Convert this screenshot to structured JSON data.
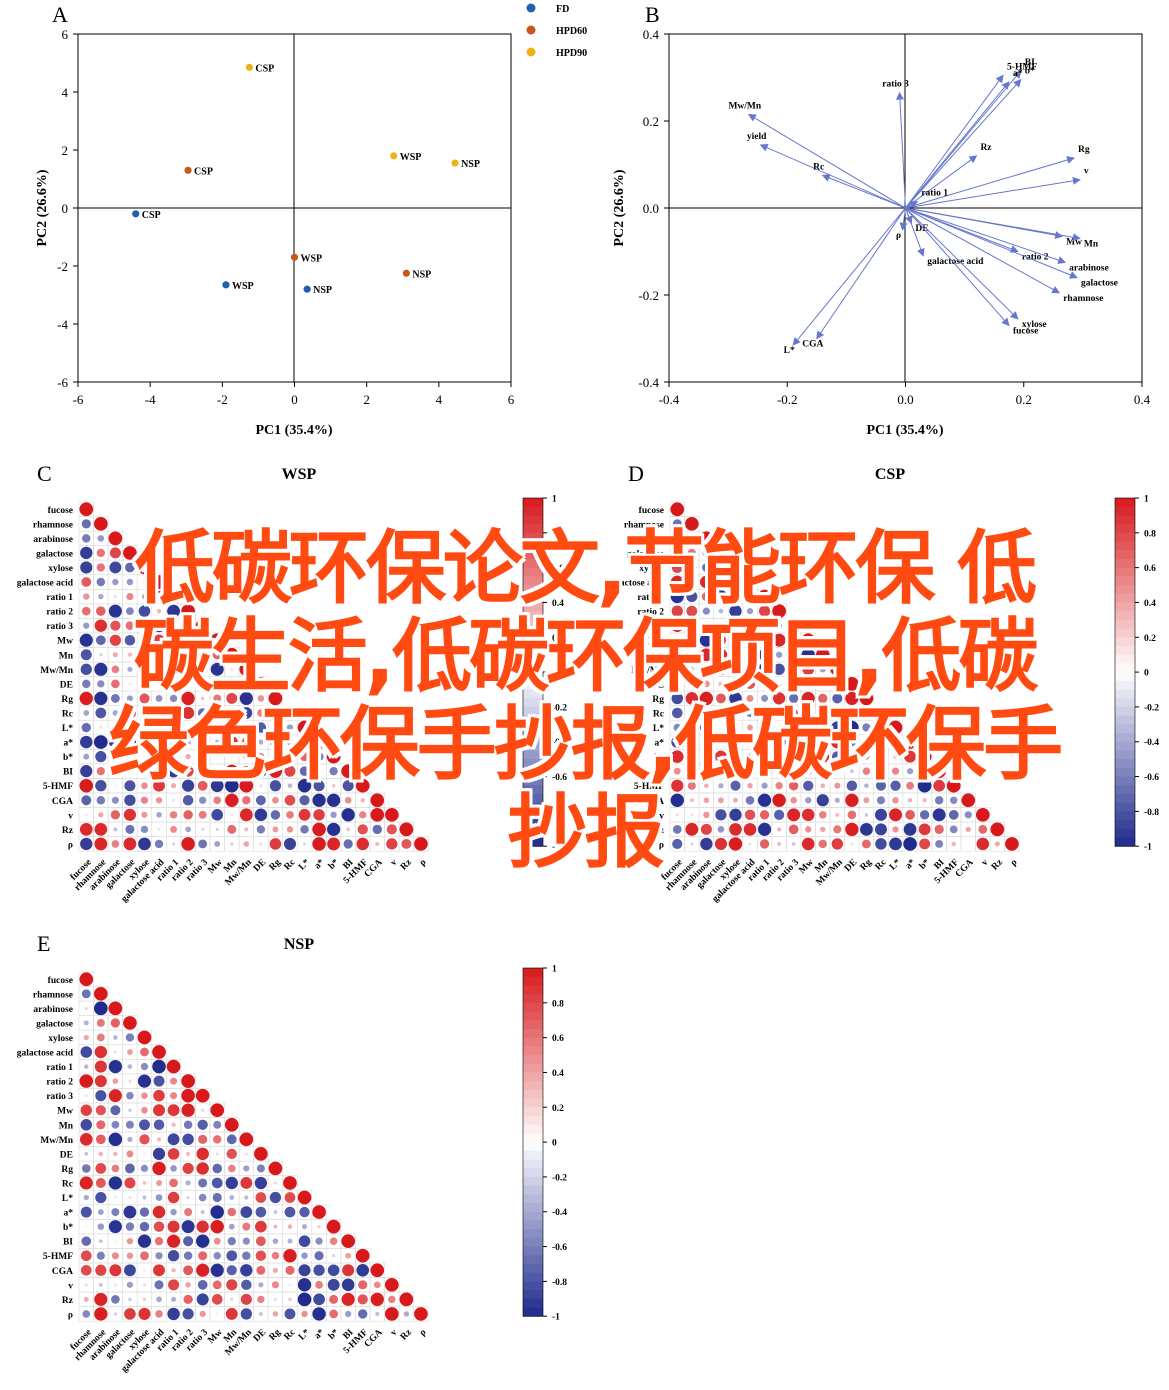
{
  "panelA": {
    "letter": "A",
    "xlabel": "PC1 (35.4%)",
    "ylabel": "PC2 (26.6%)",
    "xlim": [
      -6,
      6
    ],
    "ylim": [
      -6,
      6
    ],
    "xticks": [
      "-6",
      "-4",
      "-2",
      "0",
      "2",
      "4",
      "6"
    ],
    "yticks": [
      "6",
      "4",
      "2",
      "0",
      "-2",
      "-4",
      "-6"
    ],
    "legend": [
      {
        "name": "FD",
        "color": "#1f5fae"
      },
      {
        "name": "HPD60",
        "color": "#c8561e"
      },
      {
        "name": "HPD90",
        "color": "#f0b21c"
      }
    ]
  },
  "panelB": {
    "letter": "B",
    "xlabel": "PC1 (35.4%)",
    "ylabel": "PC2 (26.6%)",
    "xlim": [
      -0.4,
      0.4
    ],
    "ylim": [
      -0.4,
      0.4
    ],
    "xticks": [
      "-0.4",
      "-0.2",
      "0.0",
      "0.2",
      "0.4"
    ],
    "yticks": [
      "0.4",
      "0.2",
      "0.0",
      "-0.2",
      "-0.4"
    ],
    "arrow_color": "#6677cc"
  },
  "corr": {
    "variables": [
      "fucose",
      "rhamnose",
      "arabinose",
      "galactose",
      "xylose",
      "galactose acid",
      "ratio 1",
      "ratio 2",
      "ratio 3",
      "Mw",
      "Mn",
      "Mw/Mn",
      "DE",
      "Rg",
      "Rc",
      "L*",
      "a*",
      "b*",
      "BI",
      "5-HMF",
      "CGA",
      "v",
      "Rz",
      "ρ"
    ],
    "colorbar_ticks": [
      "1",
      "0.8",
      "0.6",
      "0.4",
      "0.2",
      "0",
      "-0.2",
      "-0.4",
      "-0.6",
      "-0.8",
      "-1"
    ],
    "pos_color": "#d7191c",
    "neg_color": "#1f2a8c",
    "panels": [
      {
        "letter": "C",
        "title": "WSP"
      },
      {
        "letter": "D",
        "title": "CSP"
      },
      {
        "letter": "E",
        "title": "NSP"
      }
    ]
  },
  "chart_data": [
    {
      "type": "scatter",
      "title": "",
      "xlabel": "PC1 (35.4%)",
      "ylabel": "PC2 (26.6%)",
      "xlim": [
        -6,
        6
      ],
      "ylim": [
        -6,
        6
      ],
      "series": [
        {
          "name": "FD",
          "points": [
            {
              "x": -4.4,
              "y": -0.2,
              "label": "CSP"
            },
            {
              "x": -1.9,
              "y": -2.65,
              "label": "WSP"
            },
            {
              "x": 0.35,
              "y": -2.8,
              "label": "NSP"
            }
          ]
        },
        {
          "name": "HPD60",
          "points": [
            {
              "x": -2.95,
              "y": 1.3,
              "label": "CSP"
            },
            {
              "x": 0.0,
              "y": -1.7,
              "label": "WSP"
            },
            {
              "x": 3.1,
              "y": -2.25,
              "label": "NSP"
            }
          ]
        },
        {
          "name": "HPD90",
          "points": [
            {
              "x": -1.25,
              "y": 4.85,
              "label": "CSP"
            },
            {
              "x": 2.75,
              "y": 1.8,
              "label": "WSP"
            },
            {
              "x": 4.45,
              "y": 1.55,
              "label": "NSP"
            }
          ]
        }
      ]
    },
    {
      "type": "scatter",
      "title": "",
      "xlabel": "PC1 (35.4%)",
      "ylabel": "PC2 (26.6%)",
      "xlim": [
        -0.4,
        0.4
      ],
      "ylim": [
        -0.4,
        0.4
      ],
      "loadings": [
        {
          "label": "5-HMF",
          "x": 0.165,
          "y": 0.305
        },
        {
          "label": "BI",
          "x": 0.195,
          "y": 0.315
        },
        {
          "label": "a*",
          "x": 0.175,
          "y": 0.29
        },
        {
          "label": "b*",
          "x": 0.195,
          "y": 0.295
        },
        {
          "label": "ratio 3",
          "x": -0.01,
          "y": 0.265
        },
        {
          "label": "Mw/Mn",
          "x": -0.265,
          "y": 0.215
        },
        {
          "label": "yield",
          "x": -0.245,
          "y": 0.145
        },
        {
          "label": "Rc",
          "x": -0.14,
          "y": 0.075
        },
        {
          "label": "Rz",
          "x": 0.12,
          "y": 0.12
        },
        {
          "label": "Rg",
          "x": 0.285,
          "y": 0.115
        },
        {
          "label": "v",
          "x": 0.295,
          "y": 0.065
        },
        {
          "label": "ratio 1",
          "x": 0.02,
          "y": 0.015
        },
        {
          "label": "DE",
          "x": 0.01,
          "y": -0.035
        },
        {
          "label": "ρ",
          "x": -0.005,
          "y": -0.05
        },
        {
          "label": "galactose acid",
          "x": 0.03,
          "y": -0.11
        },
        {
          "label": "Mw",
          "x": 0.265,
          "y": -0.065
        },
        {
          "label": "Mn",
          "x": 0.295,
          "y": -0.07
        },
        {
          "label": "ratio 2",
          "x": 0.19,
          "y": -0.1
        },
        {
          "label": "arabinose",
          "x": 0.27,
          "y": -0.125
        },
        {
          "label": "galactose",
          "x": 0.29,
          "y": -0.16
        },
        {
          "label": "rhamnose",
          "x": 0.26,
          "y": -0.195
        },
        {
          "label": "xylose",
          "x": 0.19,
          "y": -0.255
        },
        {
          "label": "fucose",
          "x": 0.175,
          "y": -0.27
        },
        {
          "label": "L*",
          "x": -0.19,
          "y": -0.315
        },
        {
          "label": "CGA",
          "x": -0.15,
          "y": -0.3
        }
      ]
    },
    {
      "type": "heatmap",
      "title": "WSP",
      "lower_triangle_correlation": "24 × 24 lower-triangular Pearson correlation matrix, circles sized and colored by r"
    },
    {
      "type": "heatmap",
      "title": "CSP",
      "lower_triangle_correlation": "24 × 24 lower-triangular Pearson correlation matrix, circles sized and colored by r"
    },
    {
      "type": "heatmap",
      "title": "NSP",
      "lower_triangle_correlation": "24 × 24 lower-triangular Pearson correlation matrix, circles sized and colored by r"
    }
  ],
  "watermark": {
    "lines": [
      "低碳环保论文,节能环保 低",
      "碳生活,低碳环保项目,低碳",
      "绿色环保手抄报,低碳环保手",
      "抄报"
    ]
  }
}
